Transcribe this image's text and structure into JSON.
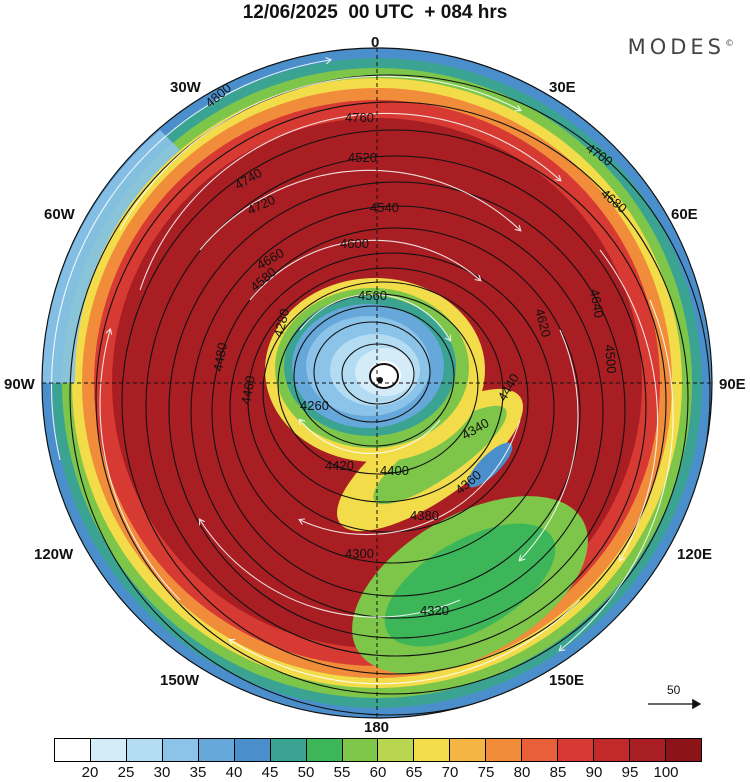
{
  "title": "12/06/2025  00 UTC  + 084 hrs",
  "brand": "MODES",
  "brand_mark": "©",
  "longitude_labels": {
    "n": "0",
    "ne": "30E",
    "ene": "60E",
    "e": "90E",
    "ese": "120E",
    "se": "150E",
    "s": "180",
    "sw": "150W",
    "wsw": "120W",
    "w": "90W",
    "wnw": "60W",
    "nw": "30W"
  },
  "reference_vector": "50",
  "contour_labels": [
    "4800",
    "4760",
    "4740",
    "4720",
    "4700",
    "4680",
    "4660",
    "4640",
    "4620",
    "4600",
    "4580",
    "4560",
    "4540",
    "4520",
    "4500",
    "4480",
    "4460",
    "4440",
    "4420",
    "4400",
    "4380",
    "4360",
    "4340",
    "4320",
    "4300",
    "4280",
    "4260"
  ],
  "colorbar": {
    "ticks": [
      "20",
      "25",
      "30",
      "35",
      "40",
      "45",
      "50",
      "55",
      "60",
      "65",
      "70",
      "75",
      "80",
      "85",
      "90",
      "95",
      "100"
    ],
    "colors": [
      "#ffffff",
      "#d4ecf8",
      "#b3dcf2",
      "#8cc3e8",
      "#66a8da",
      "#4a8fcb",
      "#3aa392",
      "#3cb658",
      "#7ec64a",
      "#b8d650",
      "#f2dc4a",
      "#f5b544",
      "#f08c3a",
      "#e8603a",
      "#d63a32",
      "#c22a2a",
      "#a81e22",
      "#8c1418"
    ]
  }
}
